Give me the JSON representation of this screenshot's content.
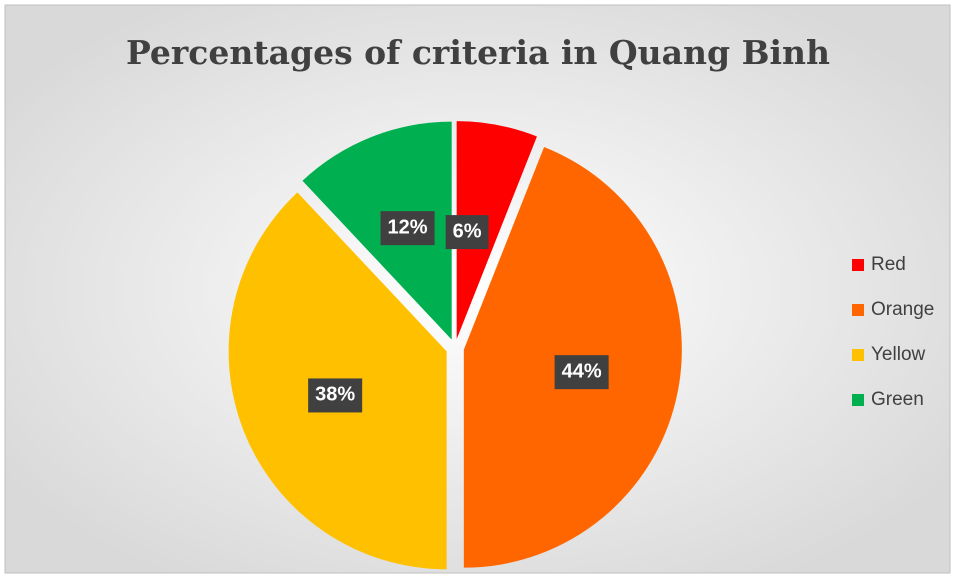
{
  "chart_data": {
    "type": "pie",
    "title": "Percentages of criteria in Quang Binh",
    "categories": [
      "Red",
      "Orange",
      "Yellow",
      "Green"
    ],
    "values": [
      6,
      44,
      38,
      12
    ],
    "value_labels": [
      "6%",
      "44%",
      "38%",
      "12%"
    ],
    "colors": [
      "#ff0000",
      "#ff6600",
      "#ffc000",
      "#00b050"
    ],
    "legend": "right"
  }
}
